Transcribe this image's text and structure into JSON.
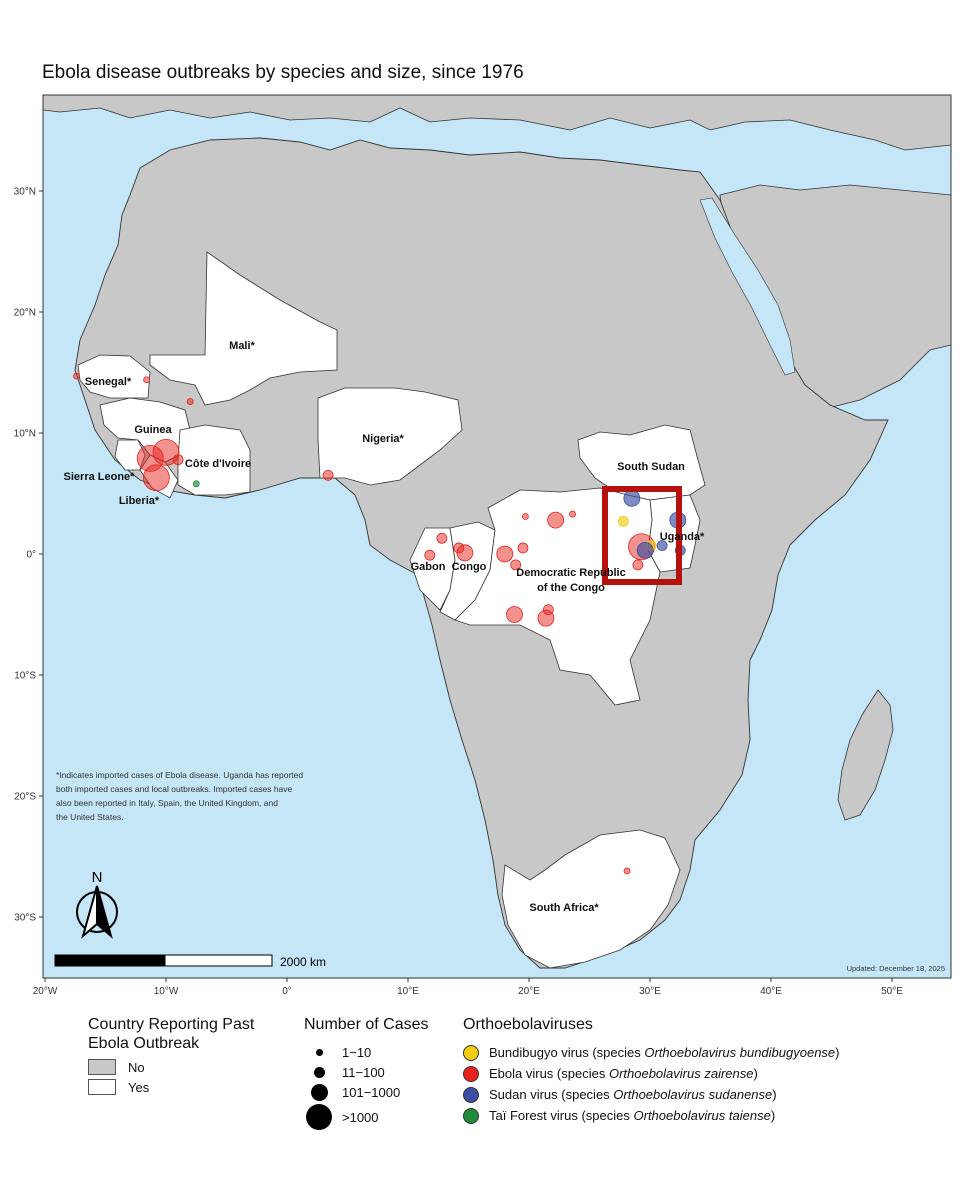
{
  "title": "Ebola disease outbreaks by species and size, since 1976",
  "map": {
    "lat_ticks": [
      "30°N",
      "20°N",
      "10°N",
      "0°",
      "10°S",
      "20°S",
      "30°S"
    ],
    "lon_ticks": [
      "20°W",
      "10°W",
      "0°",
      "10°E",
      "20°E",
      "30°E",
      "40°E",
      "50°E"
    ],
    "colors": {
      "ocean": "#c4e6f7",
      "no": "#c8c8c8",
      "yes": "#ffffff",
      "highlight": "#b5120e"
    },
    "country_labels": {
      "mali": "Mali*",
      "senegal": "Senegal*",
      "guinea": "Guinea",
      "cote": "Côte d'Ivoire",
      "sierra": "Sierra Leone*",
      "liberia": "Liberia*",
      "nigeria": "Nigeria*",
      "south_sudan": "South Sudan",
      "uganda": "Uganda*",
      "gabon": "Gabon",
      "congo": "Congo",
      "drc_1": "Democratic Republic",
      "drc_2": "of the Congo",
      "south_africa": "South Africa*"
    },
    "note_lines": [
      "*Indicates imported cases of Ebola disease. Uganda has reported",
      "both imported cases and local outbreaks. Imported cases have",
      "also been reported in Italy, Spain, the United Kingdom, and",
      "the United States."
    ],
    "north_label": "N",
    "scale_label": "2000 km",
    "updated": "Updated: December 18, 2025"
  },
  "outbreaks": [
    {
      "lon": -17.4,
      "lat": 14.7,
      "species": "ebola",
      "size": 1
    },
    {
      "lon": -11.6,
      "lat": 14.4,
      "species": "ebola",
      "size": 1
    },
    {
      "lon": -8.0,
      "lat": 12.6,
      "species": "ebola",
      "size": 1
    },
    {
      "lon": -10.0,
      "lat": 8.4,
      "species": "ebola",
      "size": 4
    },
    {
      "lon": -11.3,
      "lat": 7.9,
      "species": "ebola",
      "size": 4
    },
    {
      "lon": -10.8,
      "lat": 6.3,
      "species": "ebola",
      "size": 4
    },
    {
      "lon": -9.0,
      "lat": 7.8,
      "species": "ebola",
      "size": 2
    },
    {
      "lon": -7.5,
      "lat": 5.8,
      "species": "tai",
      "size": 1
    },
    {
      "lon": 3.4,
      "lat": 6.5,
      "species": "ebola",
      "size": 2
    },
    {
      "lon": 12.8,
      "lat": 1.3,
      "species": "ebola",
      "size": 2
    },
    {
      "lon": 11.8,
      "lat": -0.1,
      "species": "ebola",
      "size": 2
    },
    {
      "lon": 14.2,
      "lat": 0.5,
      "species": "ebola",
      "size": 2
    },
    {
      "lon": 14.7,
      "lat": 0.1,
      "species": "ebola",
      "size": 3
    },
    {
      "lon": 18.0,
      "lat": 0.0,
      "species": "ebola",
      "size": 3
    },
    {
      "lon": 19.5,
      "lat": 0.5,
      "species": "ebola",
      "size": 2
    },
    {
      "lon": 19.7,
      "lat": 3.1,
      "species": "ebola",
      "size": 1
    },
    {
      "lon": 22.2,
      "lat": 2.8,
      "species": "ebola",
      "size": 3
    },
    {
      "lon": 23.6,
      "lat": 3.3,
      "species": "ebola",
      "size": 1
    },
    {
      "lon": 18.9,
      "lat": -0.9,
      "species": "ebola",
      "size": 2
    },
    {
      "lon": 18.8,
      "lat": -5.0,
      "species": "ebola",
      "size": 3
    },
    {
      "lon": 21.6,
      "lat": -4.6,
      "species": "ebola",
      "size": 2
    },
    {
      "lon": 21.4,
      "lat": -5.3,
      "species": "ebola",
      "size": 3
    },
    {
      "lon": 29.3,
      "lat": 0.6,
      "species": "ebola",
      "size": 4
    },
    {
      "lon": 29.0,
      "lat": -0.9,
      "species": "ebola",
      "size": 2
    },
    {
      "lon": 28.1,
      "lat": -26.2,
      "species": "ebola",
      "size": 1
    },
    {
      "lon": 27.8,
      "lat": 2.7,
      "species": "bundibugyo",
      "size": 2
    },
    {
      "lon": 30.1,
      "lat": 0.7,
      "species": "bundibugyo",
      "size": 2
    },
    {
      "lon": 28.5,
      "lat": 4.6,
      "species": "sudan",
      "size": 3
    },
    {
      "lon": 32.3,
      "lat": 2.8,
      "species": "sudan",
      "size": 3
    },
    {
      "lon": 29.6,
      "lat": 0.3,
      "species": "sudan",
      "size": 3
    },
    {
      "lon": 31.0,
      "lat": 0.7,
      "species": "sudan",
      "size": 2
    },
    {
      "lon": 32.5,
      "lat": 0.3,
      "species": "sudan",
      "size": 2
    }
  ],
  "legend": {
    "country": {
      "title_1": "Country Reporting Past",
      "title_2": "Ebola Outbreak",
      "no": "No",
      "yes": "Yes"
    },
    "cases": {
      "title": "Number of Cases",
      "items": [
        "1−10",
        "11−100",
        "101−1000",
        ">1000"
      ]
    },
    "viruses": {
      "title": "Orthoebolaviruses",
      "items": [
        {
          "name": "Bundibugyo virus (species ",
          "species": "Orthoebolavirus bundibugyoense",
          "close": ")",
          "color": "#f3cc14"
        },
        {
          "name": "Ebola virus (species ",
          "species": "Orthoebolavirus zairense",
          "close": ")",
          "color": "#e8231e"
        },
        {
          "name": "Sudan virus (species ",
          "species": "Orthoebolavirus sudanense",
          "close": ")",
          "color": "#3a4fa3"
        },
        {
          "name": "Taï Forest virus (species ",
          "species": "Orthoebolavirus taiense",
          "close": ")",
          "color": "#1f8c3a"
        }
      ]
    }
  }
}
